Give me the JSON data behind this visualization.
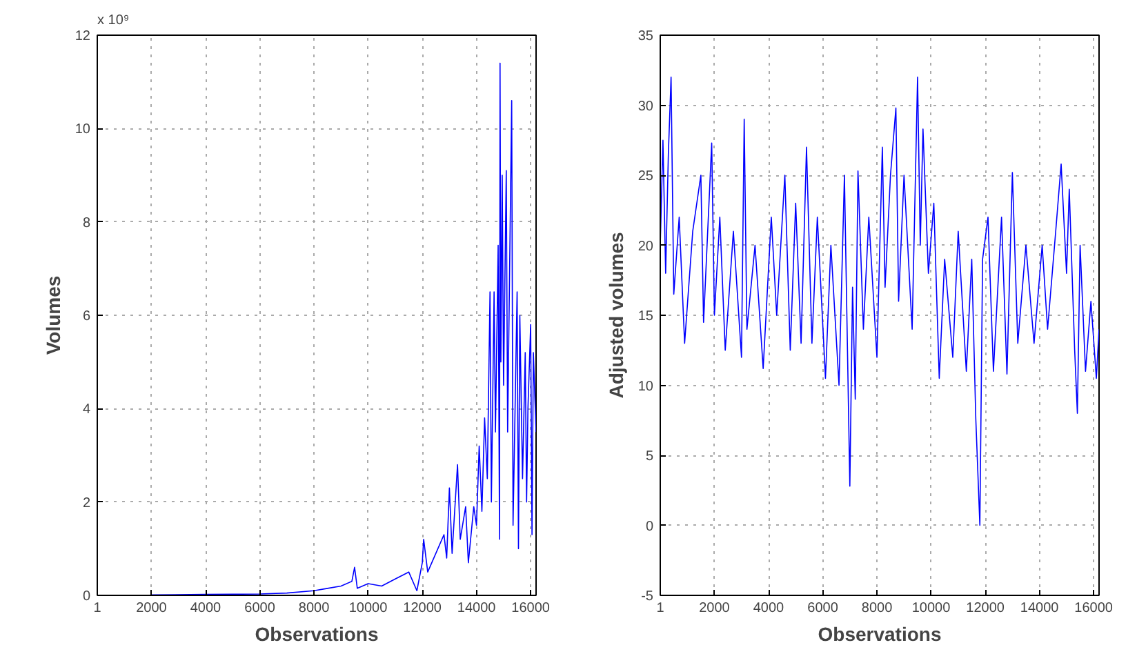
{
  "chart_data": [
    {
      "type": "line",
      "xlabel": "Observations",
      "ylabel": "Volumes",
      "annotations": [
        "x 10⁹"
      ],
      "xlim": [
        1,
        16200
      ],
      "xticks": [
        1,
        2000,
        4000,
        6000,
        8000,
        10000,
        12000,
        14000,
        16000
      ],
      "ylim": [
        0,
        12
      ],
      "yticks": [
        0,
        2,
        4,
        6,
        8,
        10,
        12
      ],
      "grid": true,
      "line_style": "solid",
      "series": [
        {
          "color": "#0000ff",
          "x": [
            2000,
            4000,
            6000,
            7000,
            8000,
            8500,
            9000,
            9400,
            9500,
            9600,
            10000,
            10500,
            11000,
            11500,
            11800,
            12000,
            12050,
            12200,
            12500,
            12800,
            12900,
            13000,
            13100,
            13300,
            13400,
            13600,
            13700,
            13900,
            14000,
            14100,
            14200,
            14300,
            14400,
            14500,
            14550,
            14650,
            14700,
            14800,
            14850,
            14870,
            14900,
            14950,
            15000,
            15100,
            15150,
            15300,
            15350,
            15500,
            15550,
            15600,
            15700,
            15800,
            15850,
            15900,
            16000,
            16050,
            16100,
            16200
          ],
          "values": [
            0.01,
            0.02,
            0.03,
            0.05,
            0.1,
            0.15,
            0.2,
            0.3,
            0.6,
            0.15,
            0.25,
            0.2,
            0.35,
            0.5,
            0.1,
            0.7,
            1.2,
            0.5,
            0.9,
            1.3,
            0.8,
            2.3,
            0.9,
            2.8,
            1.2,
            1.9,
            0.7,
            1.9,
            1.5,
            3.2,
            1.8,
            3.8,
            2.5,
            6.5,
            2.0,
            6.5,
            3.5,
            7.5,
            1.2,
            11.4,
            5.0,
            9.0,
            4.5,
            9.1,
            3.5,
            10.6,
            1.5,
            6.5,
            1.0,
            6.0,
            2.5,
            5.2,
            2.0,
            4.0,
            5.8,
            1.3,
            5.2,
            3.5
          ]
        }
      ]
    },
    {
      "type": "line",
      "xlabel": "Observations",
      "ylabel": "Adjusted volumes",
      "xlim": [
        1,
        16200
      ],
      "xticks": [
        1,
        2000,
        4000,
        6000,
        8000,
        10000,
        12000,
        14000,
        16000
      ],
      "ylim": [
        -5,
        35
      ],
      "yticks": [
        -5,
        0,
        5,
        10,
        15,
        20,
        25,
        30,
        35
      ],
      "grid": true,
      "line_style": "solid",
      "series": [
        {
          "color": "#0000ff",
          "x": [
            1,
            100,
            200,
            300,
            400,
            500,
            700,
            900,
            1200,
            1500,
            1600,
            1900,
            2000,
            2200,
            2400,
            2700,
            3000,
            3100,
            3200,
            3500,
            3800,
            4100,
            4300,
            4600,
            4800,
            5000,
            5200,
            5400,
            5600,
            5800,
            6100,
            6300,
            6600,
            6800,
            7000,
            7100,
            7200,
            7300,
            7500,
            7700,
            8000,
            8200,
            8300,
            8500,
            8700,
            8800,
            9000,
            9300,
            9500,
            9600,
            9700,
            9900,
            10100,
            10300,
            10500,
            10800,
            11000,
            11300,
            11500,
            11650,
            11800,
            11900,
            12100,
            12300,
            12600,
            12800,
            13000,
            13200,
            13500,
            13800,
            14100,
            14300,
            14600,
            14800,
            15000,
            15100,
            15300,
            15400,
            15500,
            15700,
            15900,
            16100,
            16200
          ],
          "values": [
            20,
            27.5,
            18,
            26.5,
            32,
            16.5,
            22,
            13,
            21,
            25,
            14.5,
            27.3,
            15,
            22,
            12.5,
            21,
            12,
            29,
            14,
            20,
            11.2,
            22,
            15,
            25,
            12.5,
            23,
            13,
            27,
            13,
            22,
            10.5,
            20,
            10,
            25,
            2.8,
            17,
            9,
            25.3,
            14,
            22,
            12,
            27,
            17,
            25,
            29.8,
            16,
            25,
            14,
            32,
            20,
            28.3,
            18,
            23,
            10.5,
            19,
            12,
            21,
            11,
            19,
            7.6,
            0,
            19,
            22,
            11,
            22,
            10.8,
            25.2,
            13,
            20,
            13,
            20,
            14,
            21,
            25.8,
            18,
            24,
            12.5,
            8,
            20,
            11,
            16,
            10.5,
            14
          ]
        }
      ]
    }
  ]
}
